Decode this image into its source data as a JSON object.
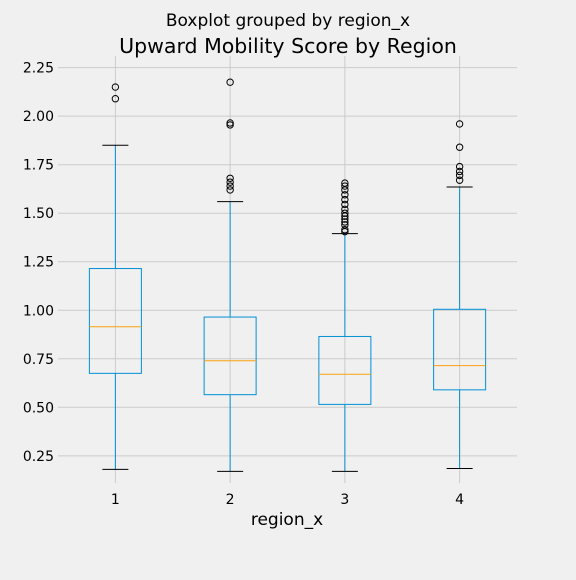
{
  "chart_data": {
    "type": "boxplot",
    "suptitle": "Boxplot grouped by region_x",
    "title": "Upward Mobility Score by Region",
    "xlabel": "region_x",
    "ylabel": "",
    "categories": [
      "1",
      "2",
      "3",
      "4"
    ],
    "ylim": [
      0.11,
      2.31
    ],
    "yticks": [
      0.25,
      0.5,
      0.75,
      1.0,
      1.25,
      1.5,
      1.75,
      2.0,
      2.25
    ],
    "ytick_labels": [
      "0.25",
      "0.50",
      "0.75",
      "1.00",
      "1.25",
      "1.50",
      "1.75",
      "2.00",
      "2.25"
    ],
    "grid": true,
    "box_color": "#008fd5",
    "median_color": "#fc9f0e",
    "grid_color": "#cbcbcb",
    "background_color": "#f0f0f0",
    "boxes": [
      {
        "category": "1",
        "whisker_low": 0.18,
        "q1": 0.675,
        "median": 0.915,
        "q3": 1.215,
        "whisker_high": 1.85,
        "outliers": [
          2.09,
          2.15
        ]
      },
      {
        "category": "2",
        "whisker_low": 0.17,
        "q1": 0.565,
        "median": 0.74,
        "q3": 0.965,
        "whisker_high": 1.56,
        "outliers": [
          1.62,
          1.64,
          1.66,
          1.68,
          1.955,
          1.965,
          2.175
        ]
      },
      {
        "category": "3",
        "whisker_low": 0.17,
        "q1": 0.515,
        "median": 0.67,
        "q3": 0.865,
        "whisker_high": 1.395,
        "outliers": [
          1.405,
          1.415,
          1.44,
          1.455,
          1.47,
          1.485,
          1.5,
          1.52,
          1.545,
          1.57,
          1.595,
          1.62,
          1.64,
          1.655
        ]
      },
      {
        "category": "4",
        "whisker_low": 0.185,
        "q1": 0.59,
        "median": 0.715,
        "q3": 1.005,
        "whisker_high": 1.635,
        "outliers": [
          1.67,
          1.695,
          1.715,
          1.74,
          1.84,
          1.96
        ]
      }
    ]
  }
}
